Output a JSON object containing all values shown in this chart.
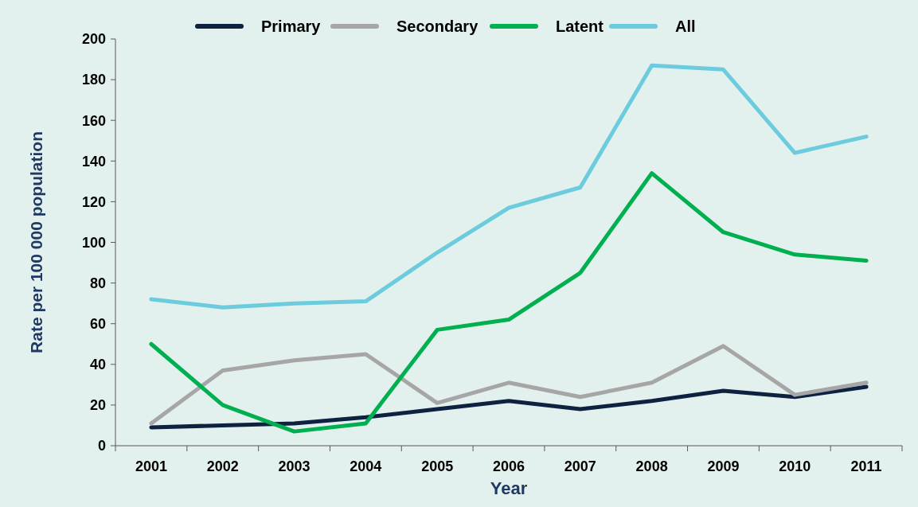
{
  "chart_data": {
    "type": "line",
    "xlabel": "Year",
    "ylabel": "Rate per 100 000 population",
    "categories": [
      "2001",
      "2002",
      "2003",
      "2004",
      "2005",
      "2006",
      "2007",
      "2008",
      "2009",
      "2010",
      "2011"
    ],
    "series": [
      {
        "name": "Primary",
        "color": "#0d2240",
        "values": [
          9,
          10,
          11,
          14,
          18,
          22,
          18,
          22,
          27,
          24,
          29
        ]
      },
      {
        "name": "Secondary",
        "color": "#a6a6a6",
        "values": [
          11,
          37,
          42,
          45,
          21,
          31,
          24,
          31,
          49,
          25,
          31
        ]
      },
      {
        "name": "Latent",
        "color": "#00b050",
        "values": [
          50,
          20,
          7,
          11,
          57,
          62,
          85,
          134,
          105,
          94,
          91
        ]
      },
      {
        "name": "All",
        "color": "#6ccbdd",
        "values": [
          72,
          68,
          70,
          71,
          95,
          117,
          127,
          187,
          185,
          144,
          152
        ]
      }
    ],
    "ylim": [
      0,
      200
    ],
    "yticks": [
      0,
      20,
      40,
      60,
      80,
      100,
      120,
      140,
      160,
      180,
      200
    ],
    "grid": false,
    "legend": "top",
    "marker": "none",
    "line_style": "solid"
  }
}
